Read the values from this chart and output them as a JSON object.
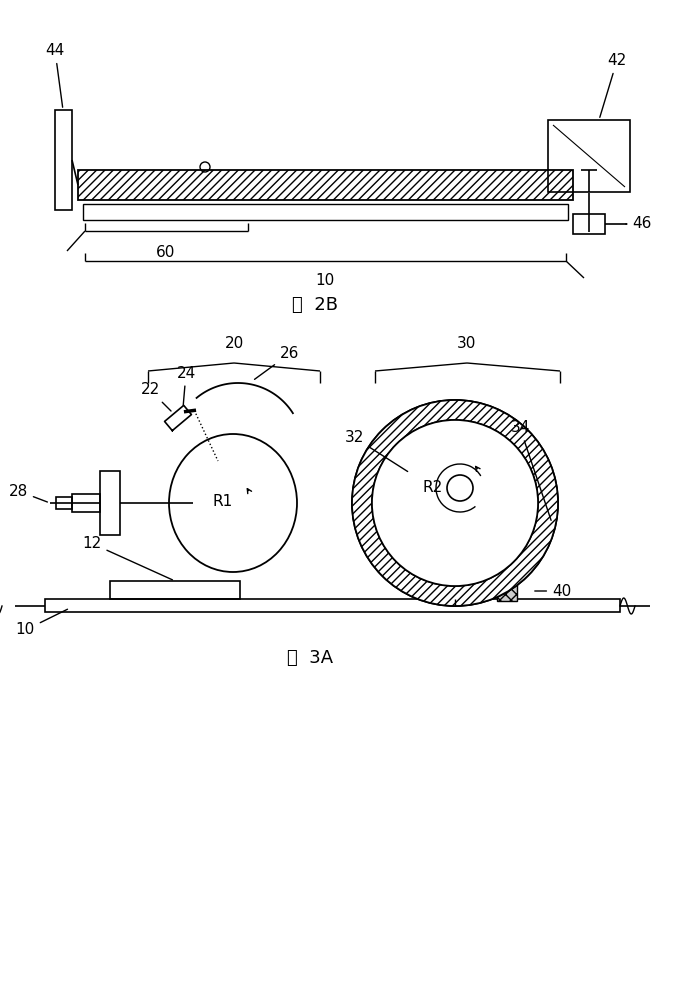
{
  "bg_color": "#ffffff",
  "line_color": "#000000",
  "fig2b_caption": "图  2B",
  "fig3a_caption": "图  3A"
}
